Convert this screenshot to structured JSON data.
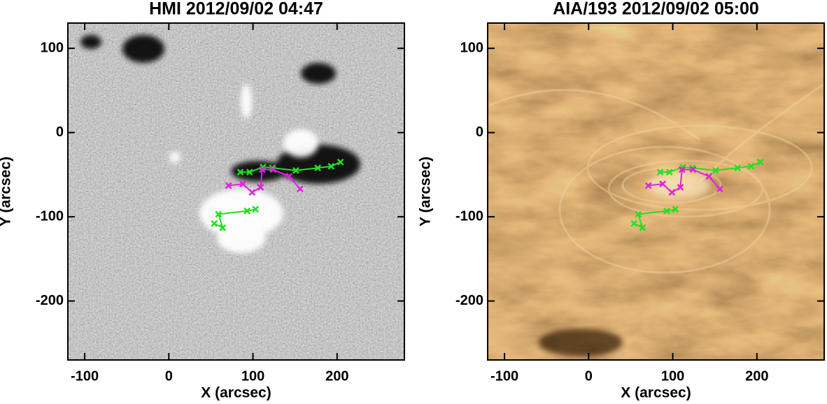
{
  "chart_data": [
    {
      "type": "image",
      "title": "HMI 2012/09/02 04:47",
      "xlabel": "X (arcsec)",
      "ylabel": "Y (arcsec)",
      "xlim": [
        -120,
        280
      ],
      "ylim": [
        -270,
        130
      ],
      "xticks": [
        -100,
        0,
        100,
        200
      ],
      "yticks": [
        -200,
        -100,
        0,
        100
      ],
      "series": [
        {
          "color": "#22e022",
          "x": [
            85,
            96,
            112,
            123,
            151,
            177,
            193,
            204
          ],
          "values": [
            -47,
            -47,
            -41,
            -42,
            -45,
            -42,
            -40,
            -35
          ]
        },
        {
          "color": "#e020e0",
          "x": [
            71,
            88,
            99,
            109,
            111,
            124,
            143,
            156
          ],
          "values": [
            -63,
            -61,
            -71,
            -65,
            -44,
            -44,
            -52,
            -67
          ]
        },
        {
          "color": "#22e022",
          "x": [
            54,
            64,
            59,
            93,
            103
          ],
          "values": [
            -108,
            -113,
            -97,
            -93,
            -91
          ]
        }
      ]
    },
    {
      "type": "image",
      "title": "AIA/193 2012/09/02 05:00",
      "xlabel": "X (arcsec)",
      "ylabel": "Y (arcsec)",
      "xlim": [
        -120,
        280
      ],
      "ylim": [
        -270,
        130
      ],
      "xticks": [
        -100,
        0,
        100,
        200
      ],
      "yticks": [
        -200,
        -100,
        0,
        100
      ],
      "series": [
        {
          "color": "#22e022",
          "x": [
            85,
            96,
            112,
            123,
            151,
            177,
            193,
            204
          ],
          "values": [
            -47,
            -47,
            -41,
            -42,
            -45,
            -42,
            -40,
            -35
          ]
        },
        {
          "color": "#e020e0",
          "x": [
            71,
            88,
            99,
            109,
            111,
            124,
            143,
            156
          ],
          "values": [
            -63,
            -61,
            -71,
            -65,
            -44,
            -44,
            -52,
            -67
          ]
        },
        {
          "color": "#22e022",
          "x": [
            54,
            64,
            59,
            93,
            103
          ],
          "values": [
            -108,
            -113,
            -97,
            -93,
            -91
          ]
        }
      ]
    }
  ]
}
